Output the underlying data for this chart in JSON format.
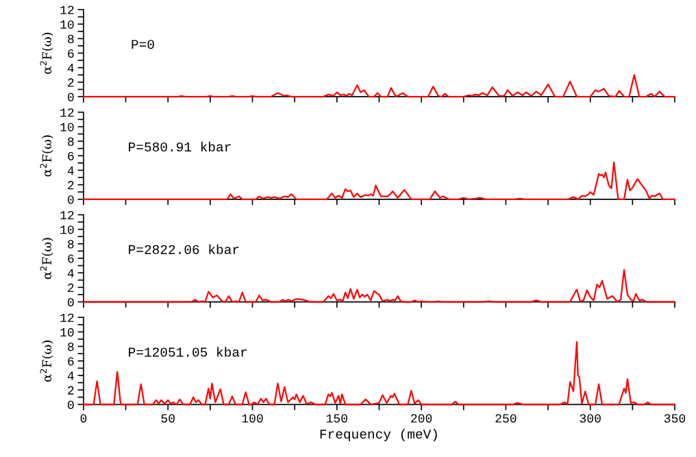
{
  "chart_data": [
    {
      "type": "line",
      "ylabel": "α$^{2}$F(ω)",
      "annotations": [
        "P=0"
      ],
      "tick_labels": "y",
      "xlim": [
        0,
        350
      ],
      "xticks": [
        0,
        {
          "value": 25,
          "label": null
        },
        50,
        {
          "value": 75,
          "label": null
        },
        100,
        {
          "value": 125,
          "label": null
        },
        150,
        {
          "value": 175,
          "label": null
        },
        200,
        {
          "value": 225,
          "label": null
        },
        250,
        {
          "value": 275,
          "label": null
        },
        300,
        {
          "value": 325,
          "label": null
        },
        350
      ],
      "ylim": [
        0,
        12
      ],
      "yticks": [
        0,
        {
          "value": 1,
          "label": null
        },
        2,
        {
          "value": 3,
          "label": null
        },
        4,
        {
          "value": 5,
          "label": null
        },
        6,
        {
          "value": 7,
          "label": null
        },
        8,
        {
          "value": 9,
          "label": null
        },
        10,
        {
          "value": 11,
          "label": null
        },
        12
      ],
      "x": [
        0,
        56,
        58,
        60,
        73,
        75,
        77,
        86,
        88,
        90,
        98,
        100,
        102,
        111,
        115,
        119,
        120,
        123,
        142,
        145,
        148,
        150,
        152,
        154,
        156,
        157,
        159,
        162,
        164,
        166,
        169,
        172,
        174,
        176,
        180,
        182,
        185,
        189,
        192,
        204,
        207,
        210,
        212,
        214,
        216,
        225,
        228,
        230,
        232,
        234,
        236,
        239,
        242,
        246,
        249,
        251,
        254,
        257,
        260,
        262,
        265,
        268,
        271,
        275,
        279,
        284,
        288,
        292,
        300,
        303,
        305,
        308,
        311,
        315,
        317,
        320,
        323,
        326,
        329,
        333,
        336,
        338,
        341,
        344,
        350
      ],
      "series": [
        {
          "color": "#ff0000",
          "values": [
            0,
            0,
            0.1,
            0,
            0,
            0.1,
            0,
            0,
            0.1,
            0,
            0,
            0.1,
            0,
            0,
            0.5,
            0.1,
            0.2,
            0,
            0,
            0.3,
            0.1,
            0.6,
            0.2,
            0.3,
            0.1,
            0.4,
            0.2,
            1.6,
            0.6,
            0.9,
            0,
            0,
            0.5,
            0,
            0,
            1.2,
            0,
            0.5,
            0,
            0,
            1.4,
            0.1,
            0,
            0.4,
            0,
            0,
            0.2,
            0.1,
            0.3,
            0.2,
            0.5,
            0.2,
            1.3,
            0.1,
            0.1,
            0.9,
            0.1,
            0.6,
            0.2,
            0.6,
            0.1,
            0.7,
            0.2,
            1.7,
            0,
            0,
            2.1,
            0,
            0,
            0.9,
            0.7,
            1.1,
            0.1,
            0,
            0.8,
            0,
            0,
            3.0,
            0,
            0,
            0.4,
            0,
            0.7,
            0,
            0
          ]
        }
      ]
    },
    {
      "type": "line",
      "ylabel": "α$^{2}$F(ω)",
      "annotations": [
        "P=580.91 kbar"
      ],
      "tick_labels": "y",
      "xlim": [
        0,
        350
      ],
      "xticks": [
        0,
        {
          "value": 25,
          "label": null
        },
        50,
        {
          "value": 75,
          "label": null
        },
        100,
        {
          "value": 125,
          "label": null
        },
        150,
        {
          "value": 175,
          "label": null
        },
        200,
        {
          "value": 225,
          "label": null
        },
        250,
        {
          "value": 275,
          "label": null
        },
        300,
        {
          "value": 325,
          "label": null
        },
        350
      ],
      "ylim": [
        0,
        12
      ],
      "yticks": [
        0,
        {
          "value": 1,
          "label": null
        },
        2,
        {
          "value": 3,
          "label": null
        },
        4,
        {
          "value": 5,
          "label": null
        },
        6,
        {
          "value": 7,
          "label": null
        },
        8,
        {
          "value": 9,
          "label": null
        },
        10,
        {
          "value": 11,
          "label": null
        },
        12
      ],
      "x": [
        0,
        85,
        87,
        89,
        92,
        94,
        102,
        104,
        106,
        109,
        111,
        113,
        116,
        119,
        121,
        123,
        126,
        144,
        147,
        149,
        151,
        153,
        155,
        156.5,
        158,
        160,
        162,
        164,
        167,
        168.5,
        170,
        171.5,
        173,
        176,
        180,
        181.5,
        183,
        186,
        190,
        194,
        205,
        208,
        211,
        213,
        216,
        222,
        225,
        228,
        232,
        235,
        238,
        255,
        258,
        261,
        287,
        290,
        293,
        295,
        297,
        299,
        300,
        302,
        305,
        306,
        307,
        308,
        309,
        311,
        312.5,
        314,
        316.5,
        320,
        322,
        323.5,
        325,
        328,
        330,
        331,
        333,
        335,
        336.5,
        338,
        339.5,
        341,
        343,
        350
      ],
      "series": [
        {
          "color": "#ff0000",
          "values": [
            0,
            0,
            0.7,
            0.1,
            0.4,
            0,
            0,
            0.4,
            0.1,
            0.3,
            0.2,
            0.3,
            0.1,
            0.4,
            0.3,
            0.7,
            0,
            0,
            0.8,
            0.2,
            0.5,
            0.2,
            1.4,
            1.1,
            1.2,
            0.3,
            0.8,
            0.3,
            0.6,
            0.5,
            0.7,
            0.5,
            1.9,
            0.4,
            0.4,
            0.7,
            1.1,
            0.2,
            1.3,
            0,
            0,
            1.1,
            0.2,
            0.4,
            0,
            0,
            0.2,
            0,
            0.1,
            0.2,
            0,
            0,
            0.1,
            0,
            0,
            0.3,
            0,
            0.5,
            0.4,
            0.7,
            1.0,
            0.6,
            3.5,
            3.3,
            3.4,
            3.0,
            3.7,
            1.9,
            1.5,
            5.1,
            0,
            0,
            2.7,
            1.2,
            1.6,
            2.8,
            2.1,
            1.8,
            1.2,
            0.1,
            0.5,
            0.4,
            0.6,
            0.8,
            0,
            0
          ]
        }
      ]
    },
    {
      "type": "line",
      "ylabel": "α$^{2}$F(ω)",
      "annotations": [
        "P=2822.06 kbar"
      ],
      "tick_labels": "y",
      "xlim": [
        0,
        350
      ],
      "xticks": [
        0,
        {
          "value": 25,
          "label": null
        },
        50,
        {
          "value": 75,
          "label": null
        },
        100,
        {
          "value": 125,
          "label": null
        },
        150,
        {
          "value": 175,
          "label": null
        },
        200,
        {
          "value": 225,
          "label": null
        },
        250,
        {
          "value": 275,
          "label": null
        },
        300,
        {
          "value": 325,
          "label": null
        },
        350
      ],
      "ylim": [
        0,
        12
      ],
      "yticks": [
        0,
        {
          "value": 1,
          "label": null
        },
        2,
        {
          "value": 3,
          "label": null
        },
        4,
        {
          "value": 5,
          "label": null
        },
        6,
        {
          "value": 7,
          "label": null
        },
        8,
        {
          "value": 9,
          "label": null
        },
        10,
        {
          "value": 11,
          "label": null
        },
        12
      ],
      "x": [
        0,
        64,
        66,
        68,
        70,
        72,
        74,
        76.5,
        79,
        82,
        84,
        86,
        88,
        90,
        92,
        94,
        96,
        102,
        104,
        106,
        108,
        111,
        116,
        118,
        119.5,
        121,
        123,
        126,
        130,
        134,
        142,
        145,
        146.5,
        148,
        150,
        152,
        153.5,
        155,
        156.5,
        158,
        160,
        162,
        163.5,
        165,
        166.5,
        168,
        170,
        172,
        173.5,
        175,
        177,
        180,
        181.5,
        183,
        184.5,
        186,
        188,
        194,
        196,
        198,
        200,
        203,
        208,
        210,
        212,
        237,
        240,
        243,
        265,
        268,
        271,
        288,
        292,
        294,
        296,
        298,
        300,
        302,
        304,
        305.5,
        307,
        310,
        313,
        316,
        318,
        320,
        322,
        324,
        325.5,
        327,
        329,
        331,
        333,
        350
      ],
      "series": [
        {
          "color": "#ff0000",
          "values": [
            0,
            0,
            0.3,
            0,
            0.1,
            0,
            1.4,
            0.6,
            0.9,
            0.1,
            0,
            0.8,
            0,
            0.1,
            0,
            1.3,
            0,
            0,
            0.9,
            0.2,
            0.3,
            0,
            0,
            0.3,
            0.1,
            0.3,
            0.1,
            0.4,
            0.3,
            0,
            0,
            0.8,
            0.5,
            1.1,
            0.2,
            0.3,
            0.1,
            1.3,
            0.5,
            1.8,
            0.4,
            1.7,
            0.6,
            1.0,
            0.7,
            1.0,
            0.2,
            1.5,
            1.2,
            1.0,
            0.1,
            0.3,
            0.1,
            0.3,
            0.2,
            0.8,
            0,
            0,
            0.2,
            0,
            0.1,
            0,
            0,
            0.1,
            0,
            0,
            0.1,
            0,
            0,
            0.2,
            0,
            0,
            1.7,
            0.1,
            0.2,
            1.6,
            0.7,
            0.2,
            2.4,
            2.0,
            2.9,
            0.4,
            0.8,
            0,
            0.3,
            4.4,
            1.0,
            0.3,
            0.1,
            1.1,
            0.2,
            0.3,
            0,
            0
          ]
        }
      ]
    },
    {
      "type": "line",
      "ylabel": "α$^{2}$F(ω)",
      "xlabel": "Frequency (meV)",
      "annotations": [
        "P=12051.05 kbar"
      ],
      "xlim": [
        0,
        350
      ],
      "xticks": [
        0,
        {
          "value": 25,
          "label": null
        },
        50,
        {
          "value": 75,
          "label": null
        },
        100,
        {
          "value": 125,
          "label": null
        },
        150,
        {
          "value": 175,
          "label": null
        },
        200,
        {
          "value": 225,
          "label": null
        },
        250,
        {
          "value": 275,
          "label": null
        },
        300,
        {
          "value": 325,
          "label": null
        },
        350
      ],
      "ylim": [
        0,
        12
      ],
      "yticks": [
        0,
        {
          "value": 1,
          "label": null
        },
        2,
        {
          "value": 3,
          "label": null
        },
        4,
        {
          "value": 5,
          "label": null
        },
        6,
        {
          "value": 7,
          "label": null
        },
        8,
        {
          "value": 9,
          "label": null
        },
        10,
        {
          "value": 11,
          "label": null
        },
        12
      ],
      "x": [
        0,
        6,
        8,
        10,
        18,
        20,
        22,
        32,
        34,
        36,
        41,
        43,
        44.5,
        46,
        48,
        50,
        51.5,
        53,
        55,
        57,
        59,
        63,
        65,
        66.5,
        68,
        70,
        72,
        74,
        75,
        76,
        78,
        81,
        83,
        86,
        88,
        90,
        94,
        96,
        98,
        99.5,
        101,
        103,
        105,
        106.5,
        108,
        110,
        113,
        115,
        117,
        119,
        121,
        124,
        125,
        126,
        128,
        130,
        132,
        135,
        137,
        143,
        145,
        146,
        147,
        149,
        151,
        152,
        153,
        155,
        164,
        167,
        170,
        175,
        177,
        179.5,
        182,
        183,
        184,
        187,
        192,
        194,
        196,
        198,
        200,
        218,
        220,
        222,
        254,
        257,
        260,
        282,
        285,
        286.5,
        288,
        290,
        292,
        292.7,
        293.5,
        295,
        297,
        299,
        303,
        305,
        307,
        317,
        320,
        321,
        322,
        324,
        326,
        328,
        332,
        334,
        336,
        350
      ],
      "series": [
        {
          "color": "#ff0000",
          "values": [
            0,
            0,
            3.2,
            0,
            0,
            4.5,
            0,
            0,
            2.8,
            0,
            0,
            0.6,
            0.1,
            0.6,
            0.1,
            0.6,
            0.1,
            0.3,
            0,
            0.7,
            0,
            0,
            1.0,
            0.3,
            0.6,
            0,
            0,
            2.2,
            0.8,
            2.9,
            0.3,
            2.1,
            0,
            0,
            1.1,
            0,
            0,
            1.7,
            0,
            0,
            0.3,
            0,
            0.8,
            0.3,
            0.8,
            0,
            0,
            2.9,
            0.4,
            2.4,
            0.3,
            1.0,
            0.7,
            1.4,
            0.3,
            1.2,
            0.1,
            0.3,
            0,
            0,
            1.4,
            1.1,
            1.6,
            0.2,
            1.2,
            0.1,
            1.4,
            0,
            0,
            0.7,
            0,
            0.2,
            1.3,
            0.2,
            1.2,
            1.0,
            1.5,
            0,
            0,
            1.9,
            0.1,
            0.6,
            0,
            0,
            0.4,
            0,
            0,
            0.2,
            0,
            0,
            0.3,
            0,
            3.1,
            1.8,
            8.6,
            4.0,
            3.8,
            0.1,
            1.8,
            0,
            0,
            2.8,
            0,
            0,
            2.2,
            1.6,
            3.5,
            0.2,
            0.3,
            0,
            0,
            0.3,
            0,
            0
          ]
        }
      ]
    }
  ]
}
